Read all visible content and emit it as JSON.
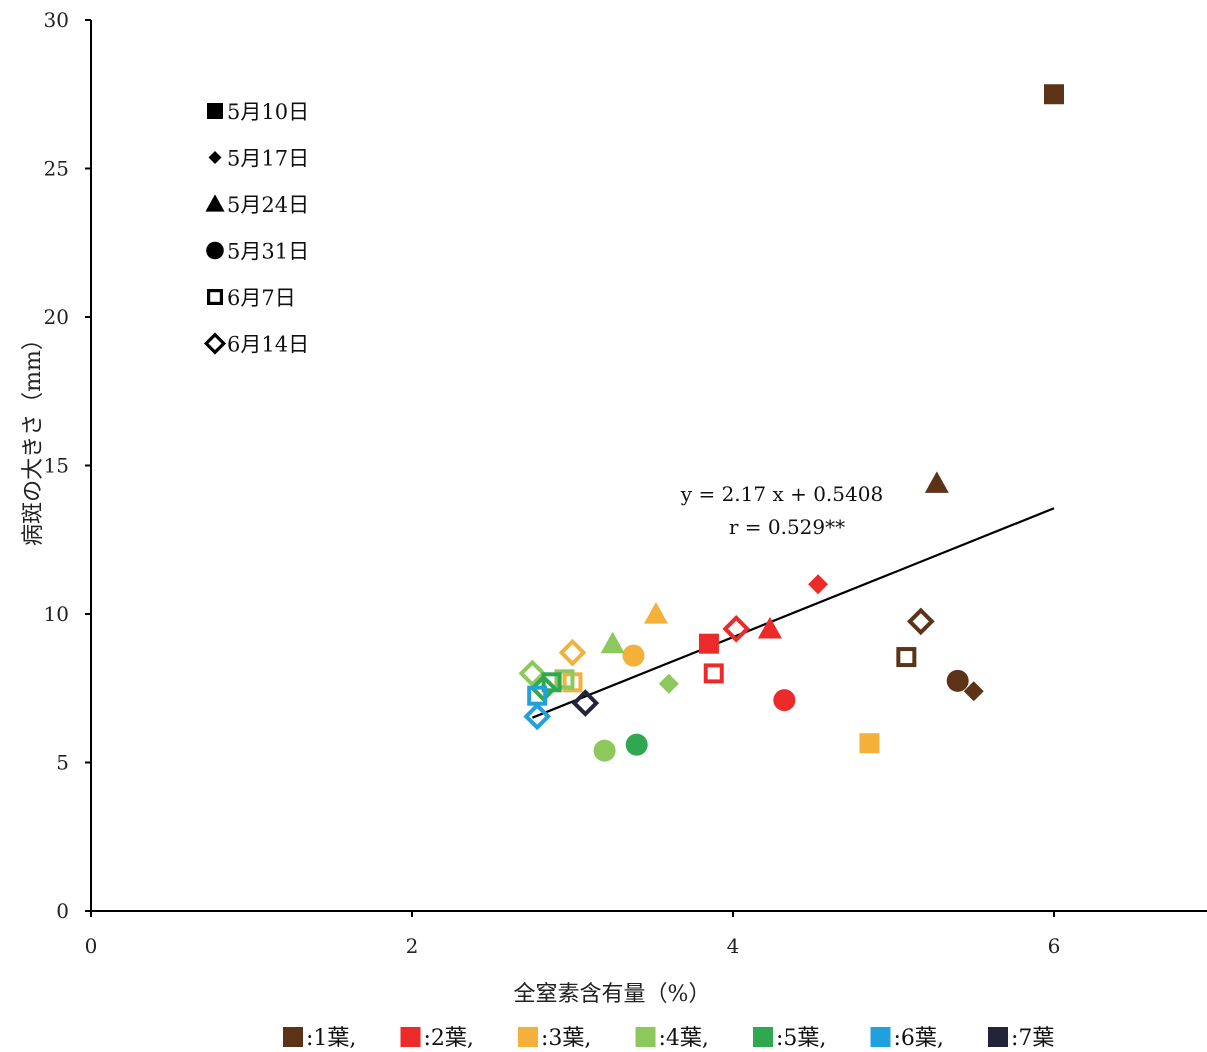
{
  "chart_data": {
    "type": "scatter",
    "title": "",
    "xlabel": "全窒素含有量（%）",
    "ylabel": "病斑の大きさ（mm）",
    "xlim": [
      0,
      7
    ],
    "ylim": [
      0,
      30
    ],
    "xticks": [
      "0",
      "2",
      "4",
      "6"
    ],
    "xtick_values": [
      0,
      2,
      4,
      6
    ],
    "yticks": [
      "0",
      "5",
      "10",
      "15",
      "20",
      "25",
      "30"
    ],
    "ytick_values": [
      0,
      5,
      10,
      15,
      20,
      25,
      30
    ],
    "grid": false,
    "date_legend": [
      {
        "label": "5月10日",
        "marker": "square"
      },
      {
        "label": "5月17日",
        "marker": "diamond"
      },
      {
        "label": "5月24日",
        "marker": "triangle"
      },
      {
        "label": "5月31日",
        "marker": "circle"
      },
      {
        "label": "6月7日",
        "marker": "open-square"
      },
      {
        "label": "6月14日",
        "marker": "open-diamond"
      }
    ],
    "leaf_legend": [
      {
        "label": ":1葉,",
        "color": "#5c3317"
      },
      {
        "label": ":2葉,",
        "color": "#ed2a2a"
      },
      {
        "label": ":3葉,",
        "color": "#f4b13a"
      },
      {
        "label": ":4葉,",
        "color": "#8cc85c"
      },
      {
        "label": ":5葉,",
        "color": "#2fa84f"
      },
      {
        "label": ":6葉,",
        "color": "#20a0dc"
      },
      {
        "label": ":7葉",
        "color": "#23233a"
      }
    ],
    "points": [
      {
        "x": 6.0,
        "y": 27.5,
        "marker": "square",
        "leaf": 1
      },
      {
        "x": 5.27,
        "y": 14.4,
        "marker": "triangle",
        "leaf": 1
      },
      {
        "x": 5.17,
        "y": 9.75,
        "marker": "open-diamond",
        "leaf": 1
      },
      {
        "x": 5.08,
        "y": 8.55,
        "marker": "open-square",
        "leaf": 1
      },
      {
        "x": 5.4,
        "y": 7.75,
        "marker": "circle",
        "leaf": 1
      },
      {
        "x": 5.5,
        "y": 7.4,
        "marker": "diamond",
        "leaf": 1
      },
      {
        "x": 4.53,
        "y": 11.0,
        "marker": "diamond",
        "leaf": 2
      },
      {
        "x": 4.23,
        "y": 9.5,
        "marker": "triangle",
        "leaf": 2
      },
      {
        "x": 4.02,
        "y": 9.5,
        "marker": "open-diamond",
        "leaf": 2
      },
      {
        "x": 3.85,
        "y": 9.0,
        "marker": "square",
        "leaf": 2
      },
      {
        "x": 3.88,
        "y": 8.0,
        "marker": "open-square",
        "leaf": 2
      },
      {
        "x": 4.32,
        "y": 7.1,
        "marker": "circle",
        "leaf": 2
      },
      {
        "x": 3.52,
        "y": 10.0,
        "marker": "triangle",
        "leaf": 3
      },
      {
        "x": 3.0,
        "y": 8.7,
        "marker": "open-diamond",
        "leaf": 3
      },
      {
        "x": 3.38,
        "y": 8.6,
        "marker": "circle",
        "leaf": 3
      },
      {
        "x": 3.0,
        "y": 7.7,
        "marker": "open-square",
        "leaf": 3
      },
      {
        "x": 4.85,
        "y": 5.65,
        "marker": "square",
        "leaf": 3
      },
      {
        "x": 3.25,
        "y": 9.0,
        "marker": "triangle",
        "leaf": 4
      },
      {
        "x": 2.75,
        "y": 8.0,
        "marker": "open-diamond",
        "leaf": 4
      },
      {
        "x": 2.95,
        "y": 7.8,
        "marker": "open-square",
        "leaf": 4
      },
      {
        "x": 3.6,
        "y": 7.65,
        "marker": "diamond",
        "leaf": 4
      },
      {
        "x": 3.2,
        "y": 5.4,
        "marker": "circle",
        "leaf": 4
      },
      {
        "x": 2.87,
        "y": 7.7,
        "marker": "open-square",
        "leaf": 5
      },
      {
        "x": 2.82,
        "y": 7.5,
        "marker": "open-diamond",
        "leaf": 5
      },
      {
        "x": 3.4,
        "y": 5.6,
        "marker": "circle",
        "leaf": 5
      },
      {
        "x": 2.78,
        "y": 7.25,
        "marker": "open-square",
        "leaf": 6
      },
      {
        "x": 2.78,
        "y": 6.55,
        "marker": "open-diamond",
        "leaf": 6
      },
      {
        "x": 3.08,
        "y": 7.0,
        "marker": "open-diamond",
        "leaf": 7
      }
    ],
    "trendline": {
      "x_start": 2.75,
      "x_end": 6.0,
      "slope": 2.17,
      "intercept": 0.5408
    },
    "equation": "y = 2.17 x + 0.5408",
    "r_text": "r = 0.529**"
  }
}
